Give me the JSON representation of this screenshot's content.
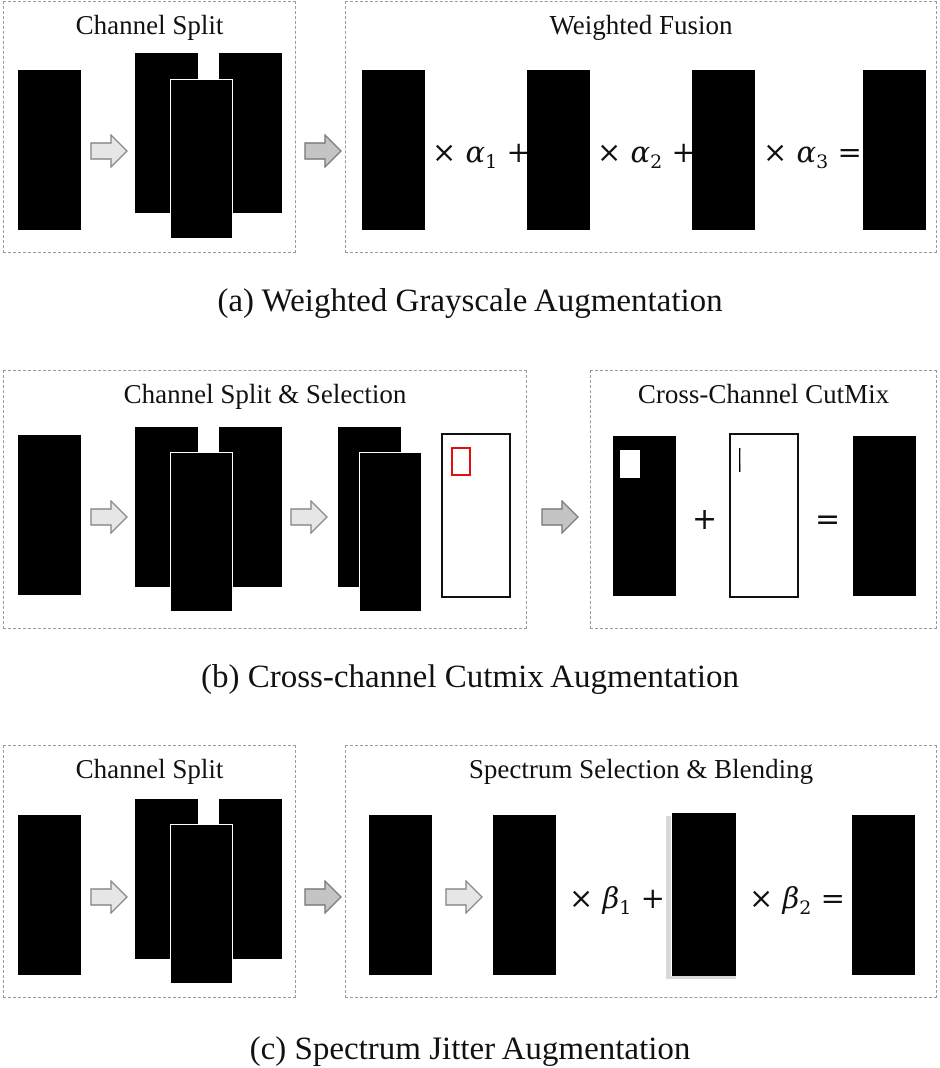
{
  "section_a": {
    "left_title": "Channel Split",
    "right_title": "Weighted Fusion",
    "caption": "(a) Weighted Grayscale Augmentation",
    "symbols": {
      "times": "×",
      "plus": "+",
      "equals": "=",
      "alpha": "α",
      "sub1": "1",
      "sub2": "2",
      "sub3": "3"
    }
  },
  "section_b": {
    "left_title": "Channel Split & Selection",
    "right_title": "Cross-Channel CutMix",
    "caption": "(b) Cross-channel Cutmix Augmentation",
    "symbols": {
      "plus": "+",
      "equals": "="
    }
  },
  "section_c": {
    "left_title": "Channel Split",
    "right_title": "Spectrum Selection & Blending",
    "caption": "(c) Spectrum Jitter Augmentation",
    "symbols": {
      "times": "×",
      "plus": "+",
      "equals": "=",
      "beta": "β",
      "sub1": "1",
      "sub2": "2"
    }
  },
  "colors": {
    "frame_border": "#9a9a9a",
    "red_channel": "#b80000",
    "green_channel": "#11a011",
    "blue_channel": "#0a0ab8",
    "selection_box": "#e01010",
    "arrow_fill": "#d6d6d6",
    "arrow_stroke": "#8a8a8a"
  },
  "icons": {
    "arrow": "right-arrow-icon",
    "person": "pedestrian-figure"
  }
}
